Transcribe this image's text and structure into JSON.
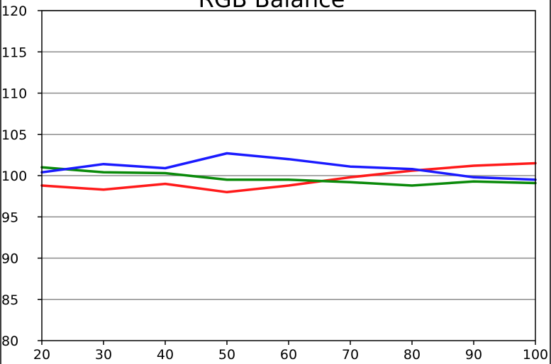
{
  "chart_data": {
    "type": "line",
    "title": "RGB Balance",
    "xlabel": "",
    "ylabel": "",
    "x": [
      20,
      30,
      40,
      50,
      60,
      70,
      80,
      90,
      100
    ],
    "xlim": [
      20,
      100
    ],
    "ylim": [
      80,
      120
    ],
    "xticks": [
      20,
      30,
      40,
      50,
      60,
      70,
      80,
      90,
      100
    ],
    "yticks": [
      80,
      85,
      90,
      95,
      100,
      105,
      110,
      115,
      120
    ],
    "grid": true,
    "series": [
      {
        "color": "#ff1a1a",
        "values": [
          98.8,
          98.3,
          99.0,
          98.0,
          98.8,
          99.8,
          100.6,
          101.2,
          101.5
        ]
      },
      {
        "color": "#0a8a0a",
        "values": [
          101.0,
          100.4,
          100.3,
          99.5,
          99.5,
          99.2,
          98.8,
          99.3,
          99.1
        ]
      },
      {
        "color": "#1a1aff",
        "values": [
          100.4,
          101.4,
          100.9,
          102.7,
          102.0,
          101.1,
          100.8,
          99.8,
          99.5
        ]
      }
    ]
  }
}
